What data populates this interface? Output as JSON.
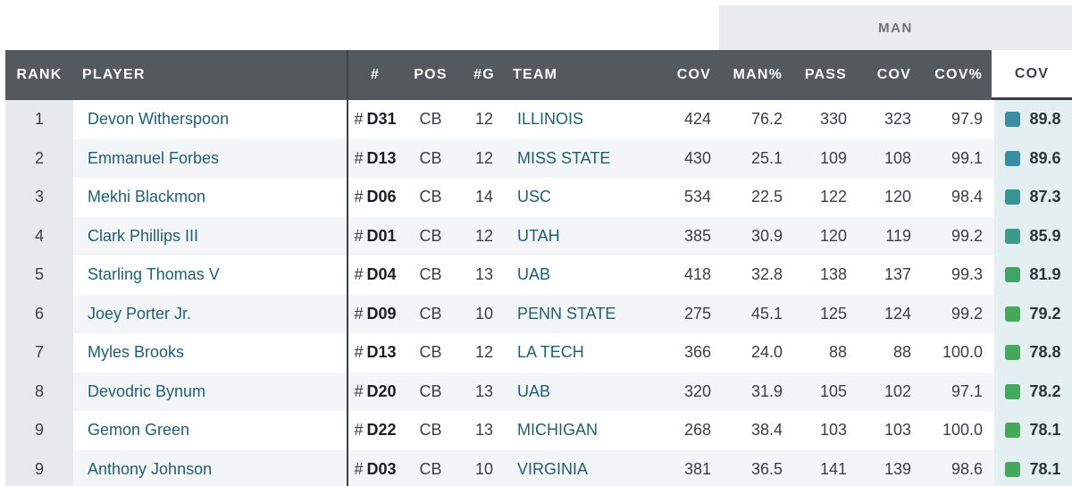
{
  "group_header": "MAN",
  "columns": {
    "rank": "RANK",
    "player": "PLAYER",
    "num": "#",
    "pos": "POS",
    "games": "#G",
    "team": "TEAM",
    "cov_snaps": "COV",
    "man_pct": "MAN%",
    "pass": "PASS",
    "man_cov": "COV",
    "cov_pct": "COV%",
    "cov_grade": "COV"
  },
  "colors": {
    "header_bg": "#54595e",
    "teal": "#3a8ea3",
    "teal_green": "#3a9d8b",
    "green": "#46a85a"
  },
  "rows": [
    {
      "rank": "1",
      "player": "Devon Witherspoon",
      "hash": "#",
      "num": "D31",
      "pos": "CB",
      "games": "12",
      "team": "ILLINOIS",
      "cov_snaps": "424",
      "man_pct": "76.2",
      "pass": "330",
      "man_cov": "323",
      "cov_pct": "97.9",
      "grade": "89.8",
      "grade_color": "#3a8ea3"
    },
    {
      "rank": "2",
      "player": "Emmanuel Forbes",
      "hash": "#",
      "num": "D13",
      "pos": "CB",
      "games": "12",
      "team": "MISS STATE",
      "cov_snaps": "430",
      "man_pct": "25.1",
      "pass": "109",
      "man_cov": "108",
      "cov_pct": "99.1",
      "grade": "89.6",
      "grade_color": "#3a8ea3"
    },
    {
      "rank": "3",
      "player": "Mekhi Blackmon",
      "hash": "#",
      "num": "D06",
      "pos": "CB",
      "games": "14",
      "team": "USC",
      "cov_snaps": "534",
      "man_pct": "22.5",
      "pass": "122",
      "man_cov": "120",
      "cov_pct": "98.4",
      "grade": "87.3",
      "grade_color": "#3a9497"
    },
    {
      "rank": "4",
      "player": "Clark Phillips III",
      "hash": "#",
      "num": "D01",
      "pos": "CB",
      "games": "12",
      "team": "UTAH",
      "cov_snaps": "385",
      "man_pct": "30.9",
      "pass": "120",
      "man_cov": "119",
      "cov_pct": "99.2",
      "grade": "85.9",
      "grade_color": "#3a9a8c"
    },
    {
      "rank": "5",
      "player": "Starling Thomas V",
      "hash": "#",
      "num": "D04",
      "pos": "CB",
      "games": "13",
      "team": "UAB",
      "cov_snaps": "418",
      "man_pct": "32.8",
      "pass": "138",
      "man_cov": "137",
      "cov_pct": "99.3",
      "grade": "81.9",
      "grade_color": "#42a366"
    },
    {
      "rank": "6",
      "player": "Joey Porter Jr.",
      "hash": "#",
      "num": "D09",
      "pos": "CB",
      "games": "10",
      "team": "PENN STATE",
      "cov_snaps": "275",
      "man_pct": "45.1",
      "pass": "125",
      "man_cov": "124",
      "cov_pct": "99.2",
      "grade": "79.2",
      "grade_color": "#46a85a"
    },
    {
      "rank": "7",
      "player": "Myles Brooks",
      "hash": "#",
      "num": "D13",
      "pos": "CB",
      "games": "12",
      "team": "LA TECH",
      "cov_snaps": "366",
      "man_pct": "24.0",
      "pass": "88",
      "man_cov": "88",
      "cov_pct": "100.0",
      "grade": "78.8",
      "grade_color": "#46a85a"
    },
    {
      "rank": "8",
      "player": "Devodric Bynum",
      "hash": "#",
      "num": "D20",
      "pos": "CB",
      "games": "13",
      "team": "UAB",
      "cov_snaps": "320",
      "man_pct": "31.9",
      "pass": "105",
      "man_cov": "102",
      "cov_pct": "97.1",
      "grade": "78.2",
      "grade_color": "#46a85a"
    },
    {
      "rank": "9",
      "player": "Gemon Green",
      "hash": "#",
      "num": "D22",
      "pos": "CB",
      "games": "13",
      "team": "MICHIGAN",
      "cov_snaps": "268",
      "man_pct": "38.4",
      "pass": "103",
      "man_cov": "103",
      "cov_pct": "100.0",
      "grade": "78.1",
      "grade_color": "#46a85a"
    },
    {
      "rank": "9",
      "player": "Anthony Johnson",
      "hash": "#",
      "num": "D03",
      "pos": "CB",
      "games": "10",
      "team": "VIRGINIA",
      "cov_snaps": "381",
      "man_pct": "36.5",
      "pass": "141",
      "man_cov": "139",
      "cov_pct": "98.6",
      "grade": "78.1",
      "grade_color": "#46a85a"
    }
  ]
}
